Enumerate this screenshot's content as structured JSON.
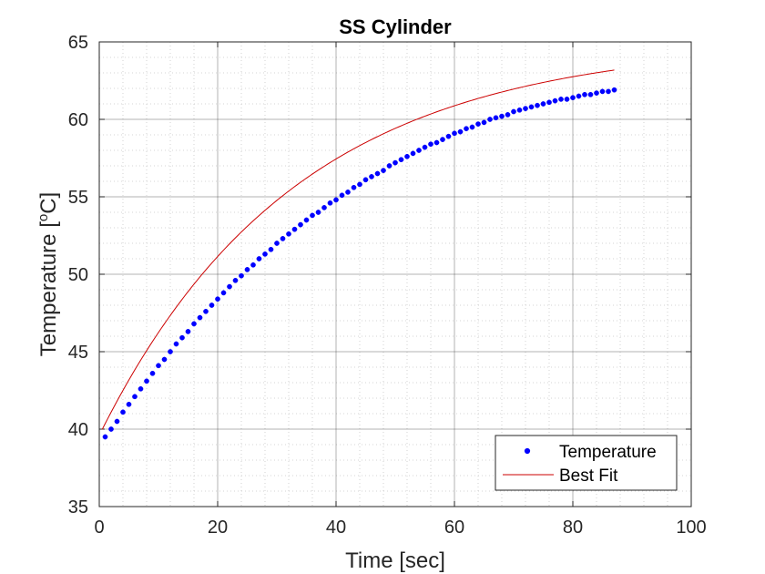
{
  "chart_data": {
    "type": "scatter",
    "title": "SS Cylinder",
    "xlabel": "Time [sec]",
    "ylabel_main": "Temperature [",
    "ylabel_sup": "o",
    "ylabel_tail": "C]",
    "xlim": [
      0,
      100
    ],
    "ylim": [
      35,
      65
    ],
    "xticks": [
      0,
      20,
      40,
      60,
      80,
      100
    ],
    "yticks": [
      35,
      40,
      45,
      50,
      55,
      60,
      65
    ],
    "xtick_labels": [
      "0",
      "20",
      "40",
      "60",
      "80",
      "100"
    ],
    "ytick_labels": [
      "35",
      "40",
      "45",
      "50",
      "55",
      "60",
      "65"
    ],
    "grid": true,
    "minor_grid": true,
    "legend_position": "bottom-right",
    "series": [
      {
        "name": "Temperature",
        "style": "markers",
        "color": "#0000ff",
        "x": [
          1,
          2,
          3,
          4,
          5,
          6,
          7,
          8,
          9,
          10,
          11,
          12,
          13,
          14,
          15,
          16,
          17,
          18,
          19,
          20,
          21,
          22,
          23,
          24,
          25,
          26,
          27,
          28,
          29,
          30,
          31,
          32,
          33,
          34,
          35,
          36,
          37,
          38,
          39,
          40,
          41,
          42,
          43,
          44,
          45,
          46,
          47,
          48,
          49,
          50,
          51,
          52,
          53,
          54,
          55,
          56,
          57,
          58,
          59,
          60,
          61,
          62,
          63,
          64,
          65,
          66,
          67,
          68,
          69,
          70,
          71,
          72,
          73,
          74,
          75,
          76,
          77,
          78,
          79,
          80,
          81,
          82,
          83,
          84,
          85,
          86,
          87
        ],
        "y": [
          39.5,
          40.0,
          40.5,
          41.1,
          41.6,
          42.1,
          42.6,
          43.1,
          43.6,
          44.1,
          44.5,
          45.0,
          45.5,
          45.9,
          46.3,
          46.8,
          47.2,
          47.6,
          48.0,
          48.4,
          48.8,
          49.2,
          49.6,
          49.9,
          50.3,
          50.6,
          51.0,
          51.3,
          51.6,
          52.0,
          52.3,
          52.6,
          52.9,
          53.2,
          53.5,
          53.8,
          54.0,
          54.3,
          54.6,
          54.8,
          55.1,
          55.3,
          55.6,
          55.8,
          56.1,
          56.3,
          56.5,
          56.7,
          57.0,
          57.2,
          57.4,
          57.6,
          57.8,
          58.0,
          58.2,
          58.4,
          58.5,
          58.7,
          58.9,
          59.1,
          59.2,
          59.4,
          59.5,
          59.7,
          59.8,
          60.0,
          60.1,
          60.2,
          60.3,
          60.5,
          60.6,
          60.7,
          60.8,
          60.9,
          61.0,
          61.1,
          61.2,
          61.3,
          61.3,
          61.4,
          61.5,
          61.6,
          61.6,
          61.7,
          61.8,
          61.8,
          61.9
        ]
      },
      {
        "name": "Best Fit",
        "style": "line",
        "color": "#cc0000",
        "fit": {
          "T_inf": 65.0,
          "T0": 39.6,
          "tau": 33.0
        },
        "x_range": [
          0.5,
          87
        ]
      }
    ]
  }
}
